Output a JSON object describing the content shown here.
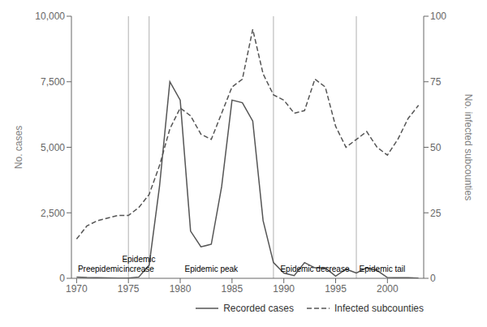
{
  "chart_data": {
    "type": "line",
    "x": [
      1970,
      1971,
      1972,
      1973,
      1974,
      1975,
      1976,
      1977,
      1978,
      1979,
      1980,
      1981,
      1982,
      1983,
      1984,
      1985,
      1986,
      1987,
      1988,
      1989,
      1990,
      1991,
      1992,
      1993,
      1994,
      1995,
      1996,
      1997,
      1998,
      1999,
      2000,
      2001,
      2002,
      2003
    ],
    "series": [
      {
        "name": "Recorded cases",
        "color": "#555555",
        "line_style": "solid",
        "values": [
          50,
          30,
          20,
          15,
          10,
          10,
          50,
          500,
          3500,
          7500,
          6800,
          1800,
          1200,
          1300,
          3500,
          6800,
          6700,
          6000,
          2200,
          600,
          200,
          100,
          600,
          400,
          400,
          80,
          350,
          200,
          400,
          300,
          30,
          20,
          20,
          10
        ]
      },
      {
        "name": "Infected subcounties",
        "color": "#555555",
        "line_style": "dashed",
        "axis": "y2",
        "values": [
          15,
          20,
          22,
          23,
          24,
          24,
          27,
          32,
          43,
          57,
          65,
          62,
          55,
          53,
          63,
          73,
          76,
          95,
          78,
          70,
          68,
          63,
          64,
          76,
          73,
          58,
          50,
          53,
          56,
          50,
          47,
          53,
          61,
          66
        ]
      }
    ],
    "xlim": [
      1969.5,
      2003.5
    ],
    "xticks": [
      1970,
      1975,
      1980,
      1985,
      1990,
      1995,
      2000
    ],
    "ylim": [
      0,
      10000
    ],
    "yticks": [
      0,
      {
        "value": 2500,
        "label": "2,500"
      },
      {
        "value": 5000,
        "label": "5,000"
      },
      {
        "value": 7500,
        "label": "7,500"
      },
      {
        "value": 10000,
        "label": "10,000"
      }
    ],
    "y2lim": [
      0,
      100
    ],
    "y2ticks": [
      0,
      25,
      50,
      75,
      100
    ],
    "ylabel": "No. cases",
    "y2label": "No. infected subcounties",
    "vlines": {
      "values": [
        1975,
        1977,
        1989,
        1997
      ],
      "color": "#b0b0b0"
    },
    "annotations": [
      {
        "x": 1972.3,
        "y": 200,
        "text": "Preepidemic"
      },
      {
        "x": 1976.0,
        "y": 200,
        "text": "Epidemic\nincrease"
      },
      {
        "x": 1983.0,
        "y": 200,
        "text": "Epidemic peak"
      },
      {
        "x": 1993.0,
        "y": 200,
        "text": "Epidemic decrease"
      },
      {
        "x": 1999.5,
        "y": 200,
        "text": "Epidemic tail"
      }
    ],
    "legend": "lower right",
    "grid": false
  }
}
